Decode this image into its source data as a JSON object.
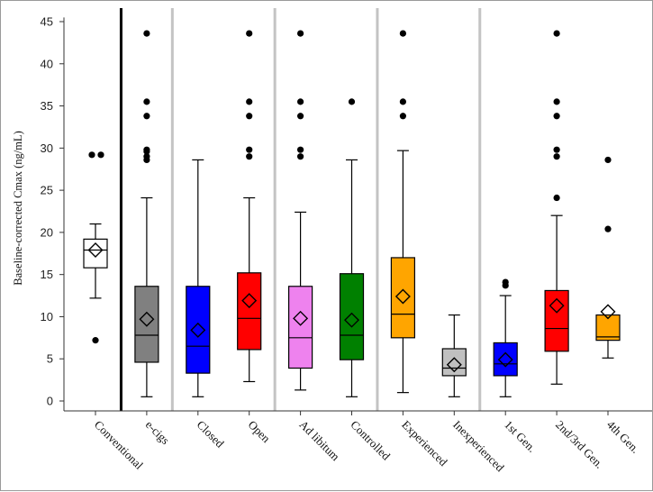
{
  "chart_data": {
    "type": "box",
    "title": "",
    "xlabel": "",
    "ylabel": "Baseline-corrected Cmax (ng/mL)",
    "ylim": [
      -1,
      45.5
    ],
    "yticks": [
      0,
      5,
      10,
      15,
      20,
      25,
      30,
      35,
      40,
      45
    ],
    "grid": false,
    "group_separators": [
      {
        "after_index": 0,
        "style": "solid-black"
      },
      {
        "after_index": 1,
        "style": "gray"
      },
      {
        "after_index": 3,
        "style": "gray"
      },
      {
        "after_index": 5,
        "style": "gray"
      },
      {
        "after_index": 7,
        "style": "gray"
      }
    ],
    "boxes": [
      {
        "label": "Conventional",
        "color": "#ffffff",
        "whisker_low": 12.2,
        "q1": 15.8,
        "median": 17.9,
        "q3": 19.2,
        "whisker_high": 21.0,
        "mean": 17.9,
        "outliers": [
          7.2,
          29.2,
          29.2
        ]
      },
      {
        "label": "e-cigs",
        "color": "#808080",
        "whisker_low": 0.5,
        "q1": 4.6,
        "median": 7.8,
        "q3": 13.6,
        "whisker_high": 24.1,
        "mean": 9.7,
        "outliers": [
          28.6,
          29.0,
          29.6,
          29.8,
          33.8,
          35.5,
          43.6
        ]
      },
      {
        "label": "Closed",
        "color": "#0000ff",
        "whisker_low": 0.5,
        "q1": 3.3,
        "median": 6.5,
        "q3": 13.6,
        "whisker_high": 28.6,
        "mean": 8.4,
        "outliers": []
      },
      {
        "label": "Open",
        "color": "#ff0000",
        "whisker_low": 2.3,
        "q1": 6.1,
        "median": 9.8,
        "q3": 15.2,
        "whisker_high": 24.1,
        "mean": 11.9,
        "outliers": [
          29.0,
          29.8,
          33.8,
          35.5,
          43.6
        ]
      },
      {
        "label": "Ad libitum",
        "color": "#ee82ee",
        "whisker_low": 1.3,
        "q1": 3.9,
        "median": 7.5,
        "q3": 13.6,
        "whisker_high": 22.4,
        "mean": 9.8,
        "outliers": [
          29.0,
          29.8,
          33.8,
          35.5,
          43.6
        ]
      },
      {
        "label": "Controlled",
        "color": "#008000",
        "whisker_low": 0.5,
        "q1": 4.9,
        "median": 7.8,
        "q3": 15.1,
        "whisker_high": 28.6,
        "mean": 9.6,
        "outliers": [
          35.5
        ]
      },
      {
        "label": "Experienced",
        "color": "#ffa500",
        "whisker_low": 1.0,
        "q1": 7.5,
        "median": 10.3,
        "q3": 17.0,
        "whisker_high": 29.7,
        "mean": 12.4,
        "outliers": [
          33.8,
          35.5,
          43.6
        ]
      },
      {
        "label": "Inexperienced",
        "color": "#c0c0c0",
        "whisker_low": 0.5,
        "q1": 3.0,
        "median": 3.9,
        "q3": 6.2,
        "whisker_high": 10.2,
        "mean": 4.3,
        "outliers": []
      },
      {
        "label": "1st Gen.",
        "color": "#0000ff",
        "whisker_low": 0.5,
        "q1": 3.0,
        "median": 4.4,
        "q3": 6.9,
        "whisker_high": 12.5,
        "mean": 4.9,
        "outliers": [
          13.7,
          14.1
        ]
      },
      {
        "label": "2nd/3rd Gen.",
        "color": "#ff0000",
        "whisker_low": 2.0,
        "q1": 5.9,
        "median": 8.6,
        "q3": 13.1,
        "whisker_high": 22.0,
        "mean": 11.3,
        "outliers": [
          24.1,
          29.0,
          29.8,
          33.8,
          35.5,
          43.6
        ]
      },
      {
        "label": "4th Gen.",
        "color": "#ffa500",
        "whisker_low": 5.1,
        "q1": 7.2,
        "median": 7.6,
        "q3": 10.2,
        "whisker_high": 10.2,
        "mean": 10.6,
        "outliers": [
          20.4,
          28.6
        ]
      }
    ]
  }
}
